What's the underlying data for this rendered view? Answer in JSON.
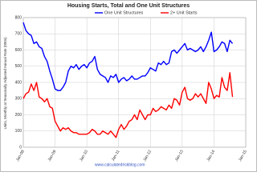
{
  "chart_data": {
    "type": "line",
    "title": "Housing Starts, Total and One Unit Structures",
    "y_label": "Units, Monthly at Seasonally Adjusted Annual Rate (000s)",
    "source": "www.calculatedriskblog.com",
    "x": [
      0,
      1,
      2,
      3,
      4,
      5,
      6,
      7,
      8,
      9,
      10,
      11,
      12,
      13,
      14,
      15,
      16,
      17,
      18,
      19,
      20,
      21,
      22,
      23,
      24,
      25,
      26,
      27,
      28,
      29,
      30,
      31,
      32,
      33,
      34,
      35,
      36,
      37,
      38,
      39,
      40,
      41,
      42,
      43,
      44,
      45,
      46,
      47,
      48,
      49,
      50,
      51,
      52,
      53,
      54,
      55,
      56,
      57,
      58,
      59,
      60,
      61,
      62,
      63,
      64,
      65,
      66,
      67,
      68,
      69,
      70,
      71,
      72,
      73,
      74,
      75,
      76,
      77,
      78,
      79
    ],
    "series": [
      {
        "name": "One Unit Structures",
        "color": "#0000ff",
        "values": [
          770,
          720,
          700,
          690,
          640,
          650,
          620,
          610,
          560,
          530,
          470,
          420,
          360,
          350,
          350,
          370,
          400,
          470,
          500,
          490,
          510,
          480,
          500,
          510,
          490,
          520,
          530,
          560,
          480,
          450,
          440,
          430,
          400,
          440,
          430,
          450,
          400,
          420,
          430,
          410,
          420,
          440,
          420,
          420,
          430,
          440,
          440,
          460,
          490,
          480,
          470,
          520,
          510,
          530,
          510,
          520,
          590,
          600,
          580,
          600,
          620,
          640,
          600,
          610,
          600,
          590,
          600,
          620,
          590,
          620,
          660,
          710,
          590,
          600,
          620,
          650,
          640,
          590,
          660,
          640
        ]
      },
      {
        "name": "2+ Unit Starts",
        "color": "#ff0000",
        "values": [
          300,
          330,
          340,
          390,
          350,
          400,
          310,
          300,
          280,
          300,
          250,
          240,
          160,
          130,
          100,
          120,
          110,
          120,
          100,
          90,
          90,
          80,
          80,
          80,
          80,
          90,
          110,
          100,
          80,
          80,
          100,
          90,
          80,
          100,
          80,
          60,
          110,
          140,
          110,
          130,
          160,
          170,
          200,
          170,
          230,
          200,
          170,
          200,
          200,
          240,
          220,
          230,
          250,
          240,
          230,
          260,
          240,
          300,
          290,
          260,
          340,
          370,
          300,
          290,
          300,
          330,
          310,
          330,
          300,
          270,
          400,
          360,
          300,
          320,
          310,
          430,
          370,
          350,
          460,
          310
        ]
      }
    ],
    "xlim": [
      0,
      84
    ],
    "xticks": [
      {
        "value": 0,
        "label": "Jan-08"
      },
      {
        "value": 12,
        "label": "Jan-09"
      },
      {
        "value": 24,
        "label": "Jan-10"
      },
      {
        "value": 36,
        "label": "Jan-11"
      },
      {
        "value": 48,
        "label": "Jan-12"
      },
      {
        "value": 60,
        "label": "Jan-13"
      },
      {
        "value": 72,
        "label": "Jan-14"
      },
      {
        "value": 84,
        "label": "Jan-15"
      }
    ],
    "ylim": [
      0,
      800
    ],
    "yticks": [
      0,
      100,
      200,
      300,
      400,
      500,
      600,
      700,
      800
    ],
    "grid": true
  }
}
